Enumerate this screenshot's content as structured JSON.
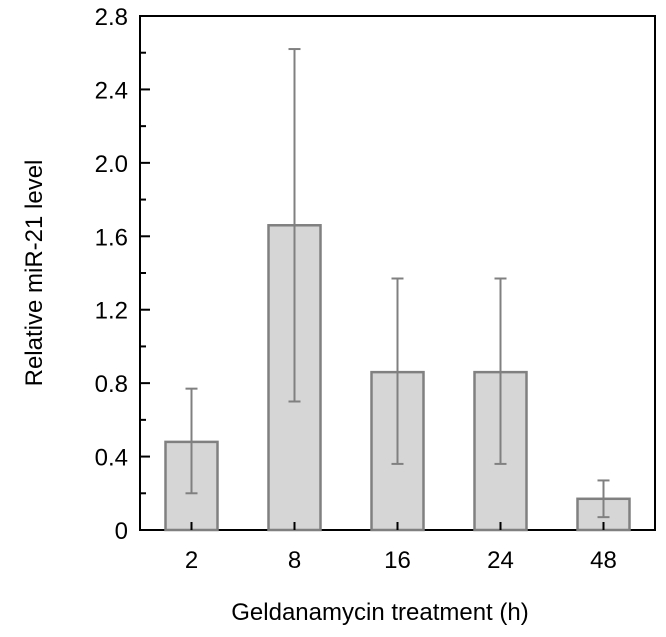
{
  "chart_data": {
    "type": "bar",
    "title": "",
    "xlabel": "Geldanamycin treatment (h)",
    "ylabel": "Relative miR-21 level",
    "categories": [
      "2",
      "8",
      "16",
      "24",
      "48"
    ],
    "values": [
      0.48,
      1.66,
      0.86,
      0.86,
      0.17
    ],
    "error_low": [
      0.2,
      0.7,
      0.36,
      0.36,
      0.07
    ],
    "error_high": [
      0.77,
      2.62,
      1.37,
      1.37,
      0.27
    ],
    "ylim": [
      0,
      2.8
    ],
    "yticks": [
      "0",
      "0.4",
      "0.8",
      "1.2",
      "1.6",
      "2.0",
      "2.4",
      "2.8"
    ],
    "grid": false,
    "legend": "none",
    "colors": {
      "bar_fill": "#d6d6d6",
      "bar_stroke": "#808080",
      "error_bar": "#808080",
      "axis": "#000000"
    }
  }
}
